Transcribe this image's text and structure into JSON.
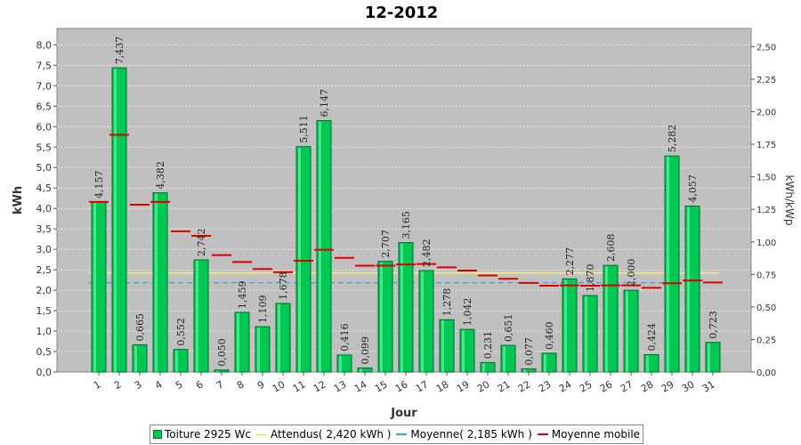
{
  "chart_data": {
    "type": "bar",
    "title": "12-2012",
    "xlabel": "Jour",
    "ylabel": "kWh",
    "y2label": "kWh/kWp",
    "ylim": [
      0,
      8.4
    ],
    "y2lim": [
      0,
      2.64
    ],
    "yticks": [
      "0,0",
      "0,5",
      "1,0",
      "1,5",
      "2,0",
      "2,5",
      "3,0",
      "3,5",
      "4,0",
      "4,5",
      "5,0",
      "5,5",
      "6,0",
      "6,5",
      "7,0",
      "7,5",
      "8,0"
    ],
    "y2ticks": [
      "0,00",
      "0,25",
      "0,50",
      "0,75",
      "1,00",
      "1,25",
      "1,50",
      "1,75",
      "2,00",
      "2,25",
      "2,50"
    ],
    "categories": [
      "1",
      "2",
      "3",
      "4",
      "5",
      "6",
      "7",
      "8",
      "9",
      "10",
      "11",
      "12",
      "13",
      "14",
      "15",
      "16",
      "17",
      "18",
      "19",
      "20",
      "21",
      "22",
      "23",
      "24",
      "25",
      "26",
      "27",
      "28",
      "29",
      "30",
      "31"
    ],
    "series": [
      {
        "name": "Toiture 2925 Wc",
        "type": "bar",
        "color": "#00c853",
        "values": [
          4.157,
          7.437,
          0.665,
          4.382,
          0.552,
          2.742,
          0.05,
          1.459,
          1.109,
          1.678,
          5.511,
          6.147,
          0.416,
          0.099,
          2.707,
          3.165,
          2.482,
          1.278,
          1.042,
          0.231,
          0.651,
          0.077,
          0.46,
          2.277,
          1.87,
          2.608,
          2.0,
          0.424,
          5.282,
          4.057,
          0.723
        ],
        "labels": [
          "4,157",
          "7,437",
          "0,665",
          "4,382",
          "0,552",
          "2,742",
          "0,050",
          "1,459",
          "1,109",
          "1,678",
          "5,511",
          "6,147",
          "0,416",
          "0,099",
          "2,707",
          "3,165",
          "2,482",
          "1,278",
          "1,042",
          "0,231",
          "0,651",
          "0,077",
          "0,460",
          "2,277",
          "1,870",
          "2,608",
          "2,000",
          "0,424",
          "5,282",
          "4,057",
          "0,723"
        ]
      },
      {
        "name": "Attendus( 2,420 kWh )",
        "type": "hline",
        "color": "#ffff66",
        "value": 2.42
      },
      {
        "name": "Moyenne( 2,185 kWh )",
        "type": "hline",
        "color": "#33aacc",
        "value": 2.185
      },
      {
        "name": "Moyenne mobile",
        "type": "step",
        "color": "#dd0000",
        "values": [
          4.16,
          5.8,
          4.09,
          4.16,
          3.44,
          3.33,
          2.86,
          2.69,
          2.52,
          2.44,
          2.72,
          2.99,
          2.79,
          2.6,
          2.6,
          2.63,
          2.64,
          2.56,
          2.48,
          2.36,
          2.28,
          2.18,
          2.11,
          2.12,
          2.11,
          2.12,
          2.12,
          2.06,
          2.17,
          2.24,
          2.19
        ]
      }
    ],
    "grid": true,
    "legend": "bottom"
  }
}
